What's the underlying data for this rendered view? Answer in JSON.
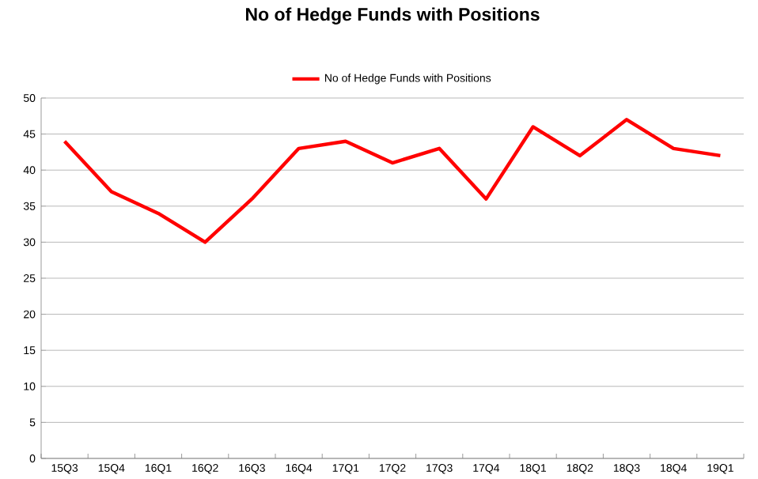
{
  "chart_data": {
    "type": "line",
    "title": "No of Hedge Funds with Positions",
    "categories": [
      "15Q3",
      "15Q4",
      "16Q1",
      "16Q2",
      "16Q3",
      "16Q4",
      "17Q1",
      "17Q2",
      "17Q3",
      "17Q4",
      "18Q1",
      "18Q2",
      "18Q3",
      "18Q4",
      "19Q1"
    ],
    "series": [
      {
        "name": "No of Hedge Funds with Positions",
        "color": "#ff0000",
        "values": [
          44,
          37,
          34,
          30,
          36,
          43,
          44,
          41,
          43,
          36,
          46,
          42,
          47,
          43,
          42
        ]
      }
    ],
    "ylim": [
      0,
      50
    ],
    "yticks": [
      0,
      5,
      10,
      15,
      20,
      25,
      30,
      35,
      40,
      45,
      50
    ],
    "grid": "y",
    "legend": "top",
    "marker": "none",
    "line_style": "solid"
  }
}
